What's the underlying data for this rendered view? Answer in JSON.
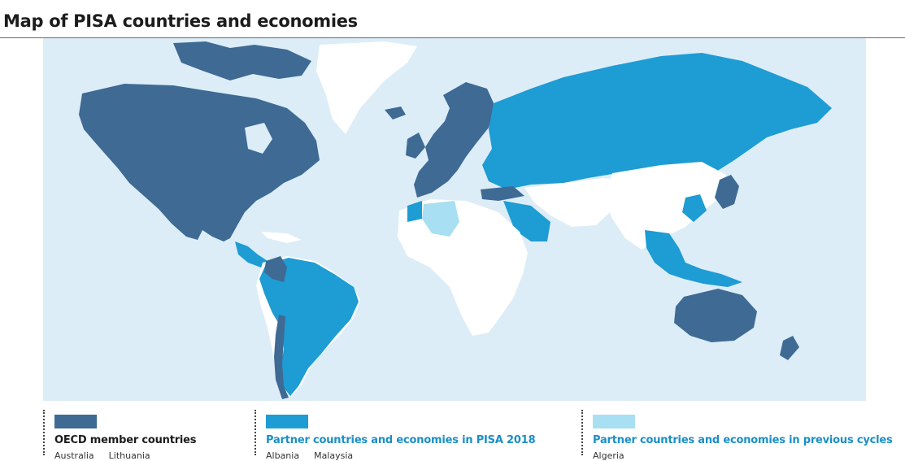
{
  "page": {
    "title": "Map of PISA countries and economies"
  },
  "colors": {
    "ocean": "#dcedf7",
    "oecd": "#3e6a94",
    "partner_2018": "#1e9cd4",
    "partner_previous": "#a8dff2",
    "non_pisa": "#ffffff"
  },
  "legend": [
    {
      "key": "oecd",
      "title": "OECD member countries",
      "color": "#3e6a94",
      "title_color": "#1c1c1c",
      "examples": [
        "Australia",
        "Lithuania"
      ]
    },
    {
      "key": "partner_2018",
      "title": "Partner countries and economies in PISA 2018",
      "color": "#1e9cd4",
      "title_color": "#1a8fc6",
      "examples": [
        "Albania",
        "Malaysia"
      ]
    },
    {
      "key": "partner_previous",
      "title": "Partner countries and economies in previous cycles",
      "color": "#a8dff2",
      "title_color": "#1a8fc6",
      "examples": [
        "Algeria"
      ]
    }
  ]
}
